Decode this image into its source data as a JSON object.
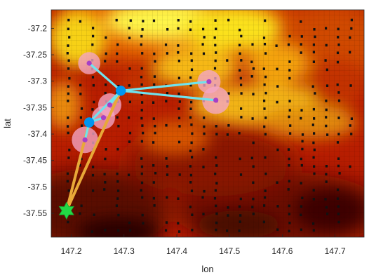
{
  "chart_data": {
    "type": "heatmap",
    "title": "",
    "xlabel": "lon",
    "ylabel": "lat",
    "xlim": [
      147.162,
      147.755
    ],
    "ylim": [
      -37.595,
      -37.165
    ],
    "xticks": [
      147.2,
      147.3,
      147.4,
      147.5,
      147.6,
      147.7
    ],
    "xtick_labels": [
      "147.2",
      "147.3",
      "147.4",
      "147.5",
      "147.6",
      "147.7"
    ],
    "yticks": [
      -37.2,
      -37.25,
      -37.3,
      -37.35,
      -37.4,
      -37.45,
      -37.5,
      -37.55
    ],
    "ytick_labels": [
      "-37.2",
      "-37.25",
      "-37.3",
      "-37.35",
      "-37.4",
      "-37.45",
      "-37.5",
      "-37.55"
    ],
    "grid": true,
    "colormap": "hot",
    "colors": {
      "link_line": "#6fe3ee",
      "hub_marker": "#0096f0",
      "target_point": "#a63fc7",
      "target_area": "#f4a6c6",
      "depot_route": "#e8a838",
      "depot_marker": "#22d845"
    },
    "depot": {
      "lon": 147.191,
      "lat": -37.545,
      "marker": "hexagram"
    },
    "hubs": [
      {
        "lon": 147.234,
        "lat": -37.378
      },
      {
        "lon": 147.294,
        "lat": -37.318
      }
    ],
    "targets": [
      {
        "lon": 147.234,
        "lat": -37.266,
        "radius": 0.021,
        "hub": 1
      },
      {
        "lon": 147.273,
        "lat": -37.345,
        "radius": 0.022,
        "hub": 1
      },
      {
        "lon": 147.461,
        "lat": -37.301,
        "radius": 0.022,
        "hub": 1
      },
      {
        "lon": 147.474,
        "lat": -37.336,
        "radius": 0.026,
        "hub": 1
      },
      {
        "lon": 147.261,
        "lat": -37.369,
        "radius": 0.022,
        "hub": 0
      },
      {
        "lon": 147.226,
        "lat": -37.411,
        "radius": 0.025,
        "hub": 0
      }
    ],
    "depot_routes": [
      0,
      1
    ]
  }
}
